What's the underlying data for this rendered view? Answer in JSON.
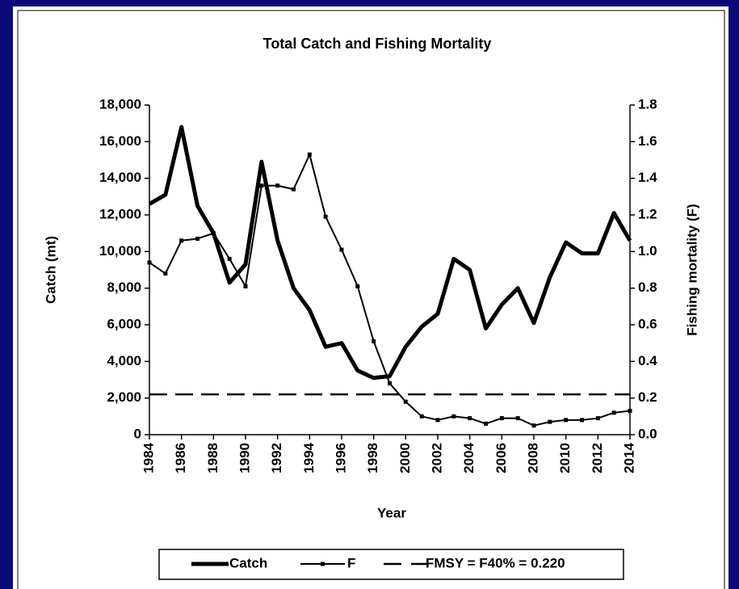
{
  "chart_data": {
    "type": "line",
    "title": "Total Catch and Fishing Mortality",
    "x_label": "Year",
    "y_label": "Catch (mt)",
    "y2_label": "Fishing mortality (F)",
    "x": [
      1984,
      1985,
      1986,
      1987,
      1988,
      1989,
      1990,
      1991,
      1992,
      1993,
      1994,
      1995,
      1996,
      1997,
      1998,
      1999,
      2000,
      2001,
      2002,
      2003,
      2004,
      2005,
      2006,
      2007,
      2008,
      2009,
      2010,
      2011,
      2012,
      2013,
      2014
    ],
    "series": [
      {
        "name": "Catch",
        "color": "#000000",
        "axis": "y",
        "values": [
          12600,
          13100,
          16800,
          12500,
          11000,
          8300,
          9300,
          14900,
          10600,
          8000,
          6800,
          4800,
          5000,
          3500,
          3100,
          3200,
          4800,
          5900,
          6600,
          9600,
          9000,
          5800,
          7100,
          8000,
          6100,
          8600,
          10500,
          9900,
          9900,
          12100,
          10600
        ]
      },
      {
        "name": "F",
        "color": "#000000",
        "axis": "y2",
        "values": [
          0.94,
          0.88,
          1.06,
          1.07,
          1.1,
          0.96,
          0.81,
          1.36,
          1.36,
          1.34,
          1.53,
          1.19,
          1.01,
          0.81,
          0.51,
          0.28,
          0.18,
          0.1,
          0.08,
          0.1,
          0.09,
          0.06,
          0.09,
          0.09,
          0.05,
          0.07,
          0.08,
          0.08,
          0.09,
          0.12,
          0.13
        ]
      }
    ],
    "reference_line": {
      "name": "FMSY = F40% = 0.220",
      "value": 0.22,
      "axis": "y2",
      "color": "#000000"
    },
    "xlim": [
      1984,
      2014
    ],
    "xticks": [
      1984,
      1986,
      1988,
      1990,
      1992,
      1994,
      1996,
      1998,
      2000,
      2002,
      2004,
      2006,
      2008,
      2010,
      2012,
      2014
    ],
    "ylim": [
      0,
      18000
    ],
    "yticks": [
      0,
      {
        "value": 2000,
        "label": "2,000"
      },
      {
        "value": 4000,
        "label": "4,000"
      },
      {
        "value": 6000,
        "label": "6,000"
      },
      {
        "value": 8000,
        "label": "8,000"
      },
      {
        "value": 10000,
        "label": "10,000"
      },
      {
        "value": 12000,
        "label": "12,000"
      },
      {
        "value": 14000,
        "label": "14,000"
      },
      {
        "value": 16000,
        "label": "16,000"
      },
      {
        "value": 18000,
        "label": "18,000"
      }
    ],
    "y2lim": [
      0,
      1.8
    ],
    "y2ticks": [
      {
        "value": 0,
        "label": "0.0"
      },
      0.2,
      0.4,
      0.6,
      0.8,
      {
        "value": 1,
        "label": "1.0"
      },
      1.2,
      1.4,
      1.6,
      1.8
    ],
    "legend": "bottom"
  }
}
